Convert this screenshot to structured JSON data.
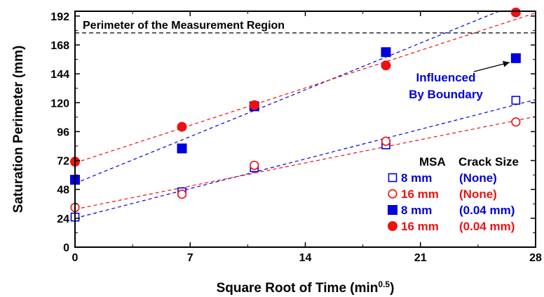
{
  "chart_data": {
    "type": "scatter",
    "xlabel": "Square Root of Time (min",
    "xlabel_sup": "0.5",
    "xlabel_close": ")",
    "ylabel": "Saturation Perimeter (mm)",
    "xlim": [
      0,
      28
    ],
    "ylim": [
      0,
      196
    ],
    "xticks": [
      0,
      7,
      14,
      21,
      28
    ],
    "yticks": [
      0,
      24,
      48,
      72,
      96,
      120,
      144,
      168,
      192
    ],
    "grid": false,
    "legend_position": "bottom-right",
    "legend_header": {
      "msa": "MSA",
      "crack": "Crack Size"
    },
    "reference_line": {
      "y": 178,
      "label": "Perimeter of the Measurement Region"
    },
    "annotation": {
      "line1": "Influenced",
      "line2": "By Boundary",
      "points_to": {
        "x": 26.8,
        "y": 157
      }
    },
    "series": [
      {
        "name": "8 mm (None)",
        "msa": "8 mm",
        "crack": "(None)",
        "marker": "square-open",
        "color": "#0000dd",
        "x": [
          0,
          6.5,
          10.9,
          18.9,
          26.8
        ],
        "y": [
          25,
          46,
          66,
          85,
          122
        ],
        "trend": {
          "slope": 3.52,
          "intercept": 24
        }
      },
      {
        "name": "16 mm (None)",
        "msa": "16 mm",
        "crack": "(None)",
        "marker": "circle-open",
        "color": "#ee1111",
        "x": [
          0,
          6.5,
          10.9,
          18.9,
          26.8
        ],
        "y": [
          33,
          44,
          68,
          88,
          104
        ],
        "trend": {
          "slope": 2.75,
          "intercept": 31.5
        }
      },
      {
        "name": "8 mm (0.04 mm)",
        "msa": "8 mm",
        "crack": "(0.04 mm)",
        "marker": "square-filled",
        "color": "#0000dd",
        "x": [
          0,
          6.5,
          10.9,
          18.9,
          26.8
        ],
        "y": [
          56,
          82,
          117,
          162,
          157
        ],
        "trend": {
          "slope": 5.55,
          "intercept": 53
        }
      },
      {
        "name": "16 mm (0.04 mm)",
        "msa": "16 mm",
        "crack": "(0.04 mm)",
        "marker": "circle-filled",
        "color": "#ee1111",
        "x": [
          0,
          6.5,
          10.9,
          18.9,
          26.8
        ],
        "y": [
          71,
          100,
          118,
          151,
          195
        ],
        "trend": {
          "slope": 4.45,
          "intercept": 70
        }
      }
    ]
  }
}
